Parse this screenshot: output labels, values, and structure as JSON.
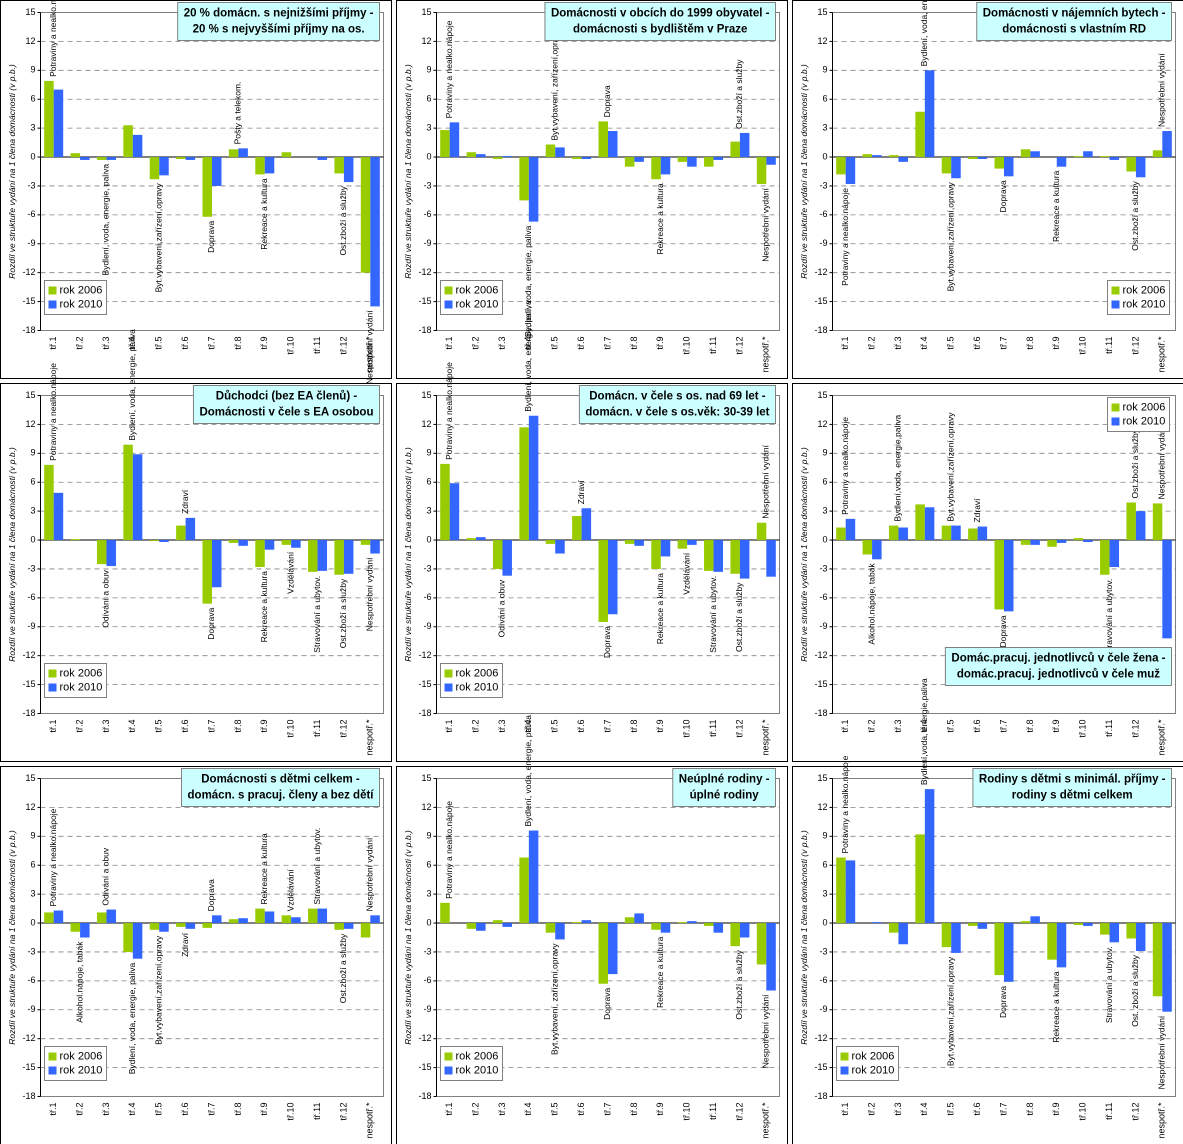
{
  "chart_data": [
    {
      "type": "bar",
      "title": [
        "20 % domácn. s nejnižšími příjmy -",
        "20 % s nejvyššími příjmy na os."
      ],
      "title_position": "upper right",
      "y_label": "Rozdíl ve struktuře vydání na 1 člena domácnosti (v p.b.)",
      "legend": "lower left",
      "categories": [
        "tř.1",
        "tř.2",
        "tř.3",
        "tř.4",
        "tř.5",
        "tř.6",
        "tř.7",
        "tř.8",
        "tř.9",
        "tř.10",
        "tř.11",
        "tř.12",
        "nespotř.*"
      ],
      "ylim": [
        -18,
        15
      ],
      "yticks": [
        -18,
        -15,
        -12,
        -9,
        -6,
        -3,
        0,
        3,
        6,
        9,
        12,
        15
      ],
      "grid": true,
      "bar_labels": [
        "Potraviny a nealko.nápoje",
        null,
        "Bydlení, voda, energie, paliva",
        null,
        "Byt.vybavení,zařízení,opravy",
        null,
        "Doprava",
        "Pošty a telekom.",
        "Rekreace a kultura",
        null,
        null,
        "Ost.zboží a služby",
        "Nespotřební vydání"
      ],
      "series": [
        {
          "name": "rok 2006",
          "color": "#99cc00",
          "values": [
            7.9,
            0.4,
            -0.3,
            3.3,
            -2.3,
            -0.2,
            -6.2,
            0.8,
            -1.8,
            0.5,
            0,
            -1.7,
            -12
          ]
        },
        {
          "name": "rok 2010",
          "color": "#3366ff",
          "values": [
            7.0,
            -0.3,
            -0.3,
            2.3,
            -1.9,
            -0.3,
            -3.0,
            0.9,
            -1.7,
            0,
            -0.3,
            -2.6,
            -15.5
          ]
        }
      ]
    },
    {
      "type": "bar",
      "title": [
        "Domácnosti  v obcích do 1999 obyvatel -",
        "domácnosti s bydlištěm v Praze"
      ],
      "title_position": "upper right",
      "y_label": "Rozdíl ve struktuře vydání na 1 člena domácnosti (v p.b.)",
      "legend": "lower left",
      "categories": [
        "tř.1",
        "tř.2",
        "tř.3",
        "tř.4",
        "tř.5",
        "tř.6",
        "tř.7",
        "tř.8",
        "tř.9",
        "tř.10",
        "tř.11",
        "tř.12",
        "nespotř.*"
      ],
      "ylim": [
        -18,
        15
      ],
      "yticks": [
        -18,
        -15,
        -12,
        -9,
        -6,
        -3,
        0,
        3,
        6,
        9,
        12,
        15
      ],
      "grid": true,
      "bar_labels": [
        "Potraviny a nealko.nápoje",
        null,
        null,
        "Bydlení, voda, energie, paliva",
        "Byt.vybavení, zařízení,opravy",
        null,
        "Doprava",
        null,
        "Rekreace a kultura",
        null,
        null,
        "Ost.zboží a služby",
        "Nespotřební vydání"
      ],
      "series": [
        {
          "name": "rok 2006",
          "color": "#99cc00",
          "values": [
            2.8,
            0.5,
            -0.2,
            -4.5,
            1.3,
            -0.2,
            3.7,
            -1.0,
            -2.3,
            -0.5,
            -1.0,
            1.6,
            -2.8
          ]
        },
        {
          "name": "rok 2010",
          "color": "#3366ff",
          "values": [
            3.6,
            0.3,
            0.1,
            -6.7,
            1.0,
            -0.2,
            2.7,
            -0.5,
            -1.8,
            -1.0,
            -0.3,
            2.5,
            -0.8
          ]
        }
      ]
    },
    {
      "type": "bar",
      "title": [
        "Domácnosti v nájemních bytech -",
        "domácnosti s vlastním RD"
      ],
      "title_position": "upper right",
      "y_label": "Rozdíl ve struktuře vydání na 1 člena domácnosti (v p.b.)",
      "legend": "lower right",
      "categories": [
        "tř.1",
        "tř.2",
        "tř.3",
        "tř.4",
        "tř.5",
        "tř.6",
        "tř.7",
        "tř.8",
        "tř.9",
        "tř.10",
        "tř.11",
        "tř.12",
        "nespotř.*"
      ],
      "ylim": [
        -18,
        15
      ],
      "yticks": [
        -18,
        -15,
        -12,
        -9,
        -6,
        -3,
        0,
        3,
        6,
        9,
        12,
        15
      ],
      "grid": true,
      "bar_labels": [
        "Potraviny a nealko.nápoje",
        null,
        null,
        "Bydlení, voda, energie, paliva",
        "Byt.vybavení,zařízení,opravy",
        null,
        "Doprava",
        null,
        "Rekreace a kultura",
        null,
        null,
        "Ost.zboží a služby",
        "Nespotřební  vydání"
      ],
      "series": [
        {
          "name": "rok 2006",
          "color": "#99cc00",
          "values": [
            -1.8,
            0.3,
            0.2,
            4.7,
            -1.7,
            -0.2,
            -1.2,
            0.8,
            0,
            0.1,
            0.1,
            -1.5,
            0.7
          ]
        },
        {
          "name": "rok 2010",
          "color": "#3366ff",
          "values": [
            -2.8,
            0.2,
            -0.5,
            9.0,
            -2.2,
            -0.2,
            -2.0,
            0.6,
            -1.0,
            0.6,
            -0.3,
            -2.1,
            2.7
          ]
        }
      ]
    },
    {
      "type": "bar",
      "title": [
        "Důchodci (bez EA členů) -",
        "Domácnosti v čele s EA osobou"
      ],
      "title_position": "upper right",
      "y_label": "Rozdíl ve struktuře vydání na 1 člena domácnosti (v p.b.)",
      "legend": "lower left",
      "categories": [
        "tř.1",
        "tř.2",
        "tř.3",
        "tř.4",
        "tř.5",
        "tř.6",
        "tř.7",
        "tř.8",
        "tř.9",
        "tř.10",
        "tř.11",
        "tř.12",
        "nespotř.*"
      ],
      "ylim": [
        -18,
        15
      ],
      "yticks": [
        -18,
        -15,
        -12,
        -9,
        -6,
        -3,
        0,
        3,
        6,
        9,
        12,
        15
      ],
      "grid": true,
      "bar_labels": [
        "Potraviny a nealko.nápoje",
        null,
        "Odívání a obuv",
        "Bydlení, voda, energie, paliva",
        null,
        "Zdraví",
        "Doprava",
        null,
        "Rekreace a kultura",
        "Vzdělávání",
        "Stravování a ubytov.",
        "Ost.zboží a služby",
        "Nespotřební vydání"
      ],
      "series": [
        {
          "name": "rok 2006",
          "color": "#99cc00",
          "values": [
            7.8,
            0.1,
            -2.5,
            9.9,
            -0.1,
            1.5,
            -6.6,
            -0.3,
            -2.8,
            -0.5,
            -3.3,
            -3.6,
            -0.5
          ]
        },
        {
          "name": "rok 2010",
          "color": "#3366ff",
          "values": [
            4.9,
            0,
            -2.7,
            8.9,
            -0.2,
            2.3,
            -4.9,
            -0.6,
            -1.0,
            -0.8,
            -3.2,
            -3.5,
            -1.4
          ]
        }
      ]
    },
    {
      "type": "bar",
      "title": [
        "Domácn. v čele s os. nad 69 let -",
        "domácn. v čele s os.věk: 30-39 let"
      ],
      "title_position": "upper right",
      "y_label": "Rozdíl ve struktuře vydání na 1 člena domácnosti (v p.b.)",
      "legend": "lower left",
      "categories": [
        "tř.1",
        "tř.2",
        "tř.3",
        "tř.4",
        "tř.5",
        "tř.6",
        "tř.7",
        "tř.8",
        "tř.9",
        "tř.10",
        "tř.11",
        "tř.12",
        "nespotř.*"
      ],
      "ylim": [
        -18,
        15
      ],
      "yticks": [
        -18,
        -15,
        -12,
        -9,
        -6,
        -3,
        0,
        3,
        6,
        9,
        12,
        15
      ],
      "grid": true,
      "bar_labels": [
        "Potraviny a nealko.nápoje",
        null,
        "Odívání a obuv",
        "Bydlení, voda, energie, paliva",
        null,
        "Zdraví",
        "Doprava",
        null,
        "Rekreace a kultura",
        "Vzdělávání",
        "Stravování a ubytov.",
        "Ost.zboží a služby",
        "Nespotřební vydání"
      ],
      "series": [
        {
          "name": "rok 2006",
          "color": "#99cc00",
          "values": [
            7.9,
            0.2,
            -3.0,
            11.7,
            -0.4,
            2.5,
            -8.5,
            -0.4,
            -3.0,
            -0.9,
            -3.2,
            -3.5,
            1.8
          ]
        },
        {
          "name": "rok 2010",
          "color": "#3366ff",
          "values": [
            5.9,
            0.3,
            -3.7,
            12.9,
            -1.4,
            3.3,
            -7.7,
            -0.6,
            -1.7,
            -0.5,
            -3.3,
            -4.0,
            -3.8
          ]
        }
      ]
    },
    {
      "type": "bar",
      "title": [
        "Domác.pracuj. jednotlivců v čele žena  -",
        "domác.pracuj. jednotlivců v čele muž"
      ],
      "title_position": "lower right",
      "y_label": "Rozdíl ve struktuře vydání na 1 člena domácnosti (v p.b.)",
      "legend": "upper right",
      "categories": [
        "tř.1",
        "tř.2",
        "tř.3",
        "tř.4",
        "tř.5",
        "tř.6",
        "tř.7",
        "tř.8",
        "tř.9",
        "tř.10",
        "tř.11",
        "tř.12",
        "nespotř.*"
      ],
      "ylim": [
        -18,
        15
      ],
      "yticks": [
        -18,
        -15,
        -12,
        -9,
        -6,
        -3,
        0,
        3,
        6,
        9,
        12,
        15
      ],
      "grid": true,
      "bar_labels": [
        "Potraviny a nealko.nápoje",
        "Alkohol.nápoje, tabák",
        "Bydlení,voda, energie,paliva",
        null,
        "Byt.vybavení,zařízení,opravy",
        "Zdraví",
        "Doprava",
        null,
        null,
        null,
        "Stravování a ubytov.",
        "Ost.zboží a služby",
        "Nespotřební  vydání"
      ],
      "series": [
        {
          "name": "rok 2006",
          "color": "#99cc00",
          "values": [
            1.3,
            -1.5,
            1.5,
            3.7,
            1.5,
            1.2,
            -7.2,
            -0.5,
            -0.7,
            0.2,
            -3.6,
            3.9,
            3.8
          ]
        },
        {
          "name": "rok 2010",
          "color": "#3366ff",
          "values": [
            2.2,
            -2.0,
            1.3,
            3.4,
            1.5,
            1.4,
            -7.4,
            -0.5,
            -0.3,
            -0.2,
            -2.8,
            3.0,
            -10.2
          ]
        }
      ]
    },
    {
      "type": "bar",
      "title": [
        "Domácnosti s dětmi celkem -",
        "domácn. s pracuj. členy a bez dětí"
      ],
      "title_position": "upper right",
      "y_label": "Rozdíl ve struktuře vydání na 1 člena domácnosti (v p.b.)",
      "legend": "lower left",
      "categories": [
        "tř.1",
        "tř.2",
        "tř.3",
        "tř.4",
        "tř.5",
        "tř.6",
        "tř.7",
        "tř.8",
        "tř.9",
        "tř.10",
        "tř.11",
        "tř.12",
        "nespotř.*"
      ],
      "ylim": [
        -18,
        15
      ],
      "yticks": [
        -18,
        -15,
        -12,
        -9,
        -6,
        -3,
        0,
        3,
        6,
        9,
        12,
        15
      ],
      "grid": true,
      "bar_labels": [
        "Potraviny a nealko.nápoje",
        "Alkohol.nápoje, tabák",
        "Odívání a obuv",
        "Bydlení, voda, energie, paliva",
        "Byt.vybavení,zařízení,opravy",
        "Zdraví",
        "Doprava",
        null,
        "Rekreace a kultura",
        "Vzdělávání",
        "Stravování a ubytov.",
        "Ost.zboží a služby",
        "Nespotřební vydání"
      ],
      "series": [
        {
          "name": "rok 2006",
          "color": "#99cc00",
          "values": [
            1.1,
            -0.9,
            1.1,
            -3.0,
            -0.7,
            -0.4,
            -0.5,
            0.4,
            1.5,
            0.8,
            1.5,
            -0.7,
            -1.5
          ]
        },
        {
          "name": "rok 2010",
          "color": "#3366ff",
          "values": [
            1.3,
            -1.5,
            1.4,
            -3.7,
            -0.9,
            -0.6,
            0.8,
            0.5,
            1.2,
            0.6,
            1.5,
            -0.6,
            0.8
          ]
        }
      ]
    },
    {
      "type": "bar",
      "title": [
        "Neúplné rodiny -",
        "úplné rodiny"
      ],
      "title_position": "upper right",
      "y_label": "Rozdíl ve struktuře vydání na 1 člena domácnosti (v p.b.)",
      "legend": "lower left",
      "categories": [
        "tř.1",
        "tř.2",
        "tř.3",
        "tř.4",
        "tř.5",
        "tř.6",
        "tř.7",
        "tř.8",
        "tř.9",
        "tř.10",
        "tř.11",
        "tř.12",
        "nespotř.*"
      ],
      "ylim": [
        -18,
        15
      ],
      "yticks": [
        -18,
        -15,
        -12,
        -9,
        -6,
        -3,
        0,
        3,
        6,
        9,
        12,
        15
      ],
      "grid": true,
      "bar_labels": [
        "Potraviny a nealko.nápoje",
        null,
        null,
        "Bydlení, voda, energie, paliva",
        "Byt.vybavení, zařízení,opravy",
        null,
        "Doprava",
        null,
        "Rekreace a kultura",
        null,
        null,
        "Ost.zboží a služby",
        "Nespotřební  vydání"
      ],
      "series": [
        {
          "name": "rok 2006",
          "color": "#99cc00",
          "values": [
            2.1,
            -0.6,
            0.3,
            6.8,
            -1.0,
            0.1,
            -6.3,
            0.6,
            -0.7,
            0.1,
            -0.3,
            -2.4,
            -4.3
          ]
        },
        {
          "name": "rok 2010",
          "color": "#3366ff",
          "values": [
            0,
            -0.8,
            -0.4,
            9.6,
            -1.7,
            0.3,
            -5.3,
            1.0,
            -1.0,
            0.2,
            -1.0,
            -1.5,
            -7.0
          ]
        }
      ]
    },
    {
      "type": "bar",
      "title": [
        "Rodiny s dětmi s minimál. příjmy -",
        "rodiny s dětmi celkem"
      ],
      "title_position": "upper right",
      "y_label": "Rozdíl ve struktuře vydání na 1 člena domácnosti (v p.b.)",
      "legend": "lower left",
      "categories": [
        "tř.1",
        "tř.2",
        "tř.3",
        "tř.4",
        "tř.5",
        "tř.6",
        "tř.7",
        "tř.8",
        "tř.9",
        "tř.10",
        "tř.11",
        "tř.12",
        "nespotř.*"
      ],
      "ylim": [
        -18,
        15
      ],
      "yticks": [
        -18,
        -15,
        -12,
        -9,
        -6,
        -3,
        0,
        3,
        6,
        9,
        12,
        15
      ],
      "grid": true,
      "bar_labels": [
        "Potraviny a nealko.nápoje",
        null,
        null,
        "Bydlení,voda, energie,paliva",
        "Byt.vybavení,zařízení,opravy",
        null,
        "Doprava",
        null,
        "Rekreace a kultura",
        null,
        "Stravování a ubytov.",
        "Ost. zboží a služby",
        "Nespotřební  vydání"
      ],
      "series": [
        {
          "name": "rok 2006",
          "color": "#99cc00",
          "values": [
            6.8,
            0,
            -1.0,
            9.2,
            -2.5,
            -0.3,
            -5.4,
            0.2,
            -3.8,
            -0.2,
            -1.2,
            -1.6,
            -7.6
          ]
        },
        {
          "name": "rok 2010",
          "color": "#3366ff",
          "values": [
            6.5,
            0.1,
            -2.2,
            13.9,
            -3.1,
            -0.6,
            -6.1,
            0.7,
            -4.6,
            -0.3,
            -2.0,
            -2.9,
            -9.2
          ]
        }
      ]
    }
  ]
}
